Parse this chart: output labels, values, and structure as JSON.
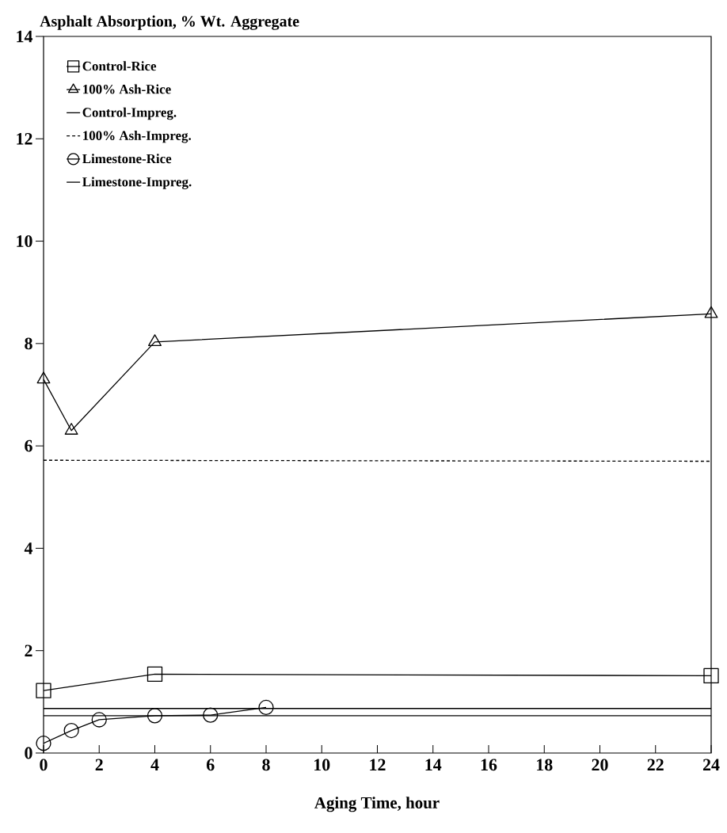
{
  "chart_data": {
    "type": "line",
    "ylabel": "Asphalt Absorption, % Wt. Aggregate",
    "xlabel": "Aging Time, hour",
    "xlim": [
      0,
      24
    ],
    "xticks": [
      0,
      2,
      4,
      6,
      8,
      10,
      12,
      14,
      16,
      18,
      20,
      22,
      24
    ],
    "ylim": [
      0,
      14
    ],
    "yticks": [
      0,
      2,
      4,
      6,
      8,
      10,
      12,
      14
    ],
    "grid": false,
    "legend": "top left",
    "series": [
      {
        "name": "Control-Rice",
        "color": "#000000",
        "marker": "square",
        "line_style": "solid",
        "x": [
          0,
          4,
          24
        ],
        "values": [
          1.22,
          1.54,
          1.51
        ]
      },
      {
        "name": "100% Ash-Rice",
        "color": "#000000",
        "marker": "triangle",
        "line_style": "solid",
        "x": [
          0,
          1,
          4,
          24
        ],
        "values": [
          7.3,
          6.3,
          8.03,
          8.58
        ]
      },
      {
        "name": "Control-Impreg.",
        "color": "#000000",
        "marker": "none",
        "line_style": "solid",
        "x": [
          0,
          24
        ],
        "values": [
          0.87,
          0.87
        ]
      },
      {
        "name": "100% Ash-Impreg.",
        "color": "#000000",
        "marker": "none",
        "line_style": "dashed",
        "x": [
          0,
          24
        ],
        "values": [
          5.72,
          5.7
        ]
      },
      {
        "name": "Limestone-Rice",
        "color": "#000000",
        "marker": "circle",
        "line_style": "solid",
        "x": [
          0,
          1,
          2,
          4,
          6,
          8
        ],
        "values": [
          0.19,
          0.44,
          0.65,
          0.73,
          0.74,
          0.89
        ]
      },
      {
        "name": "Limestone-Impreg.",
        "color": "#000000",
        "marker": "none",
        "line_style": "solid",
        "x": [
          0,
          24
        ],
        "values": [
          0.73,
          0.73
        ]
      }
    ]
  }
}
